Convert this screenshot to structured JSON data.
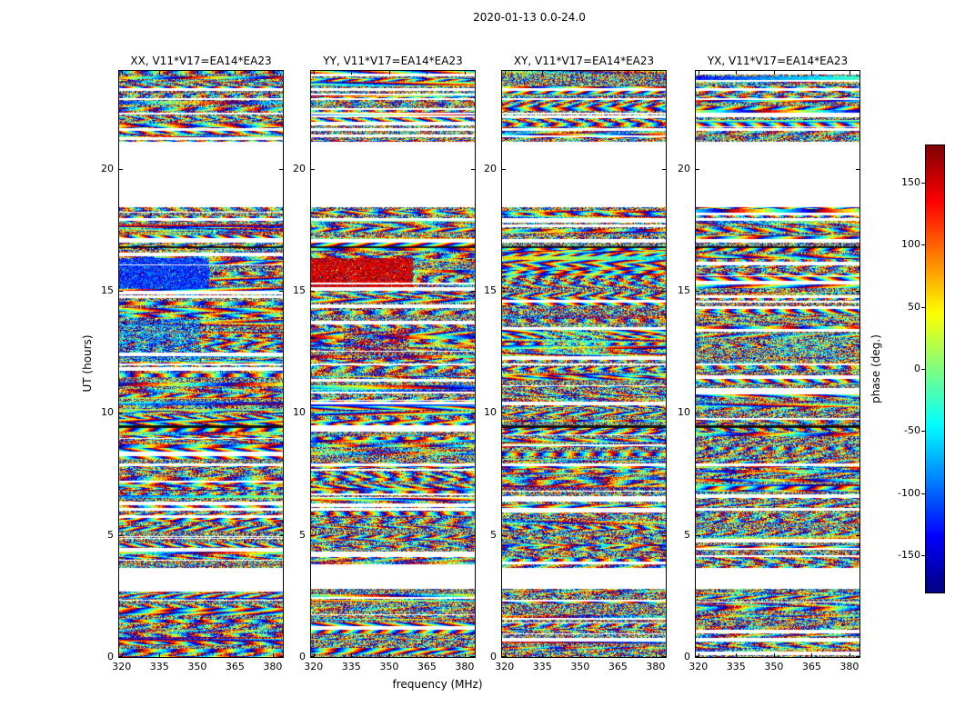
{
  "figure": {
    "title": "2020-01-13 0.0-24.0",
    "xlabel": "frequency (MHz)",
    "ylabel": "UT (hours)",
    "colorbar_label": "phase (deg.)"
  },
  "chart_data": {
    "type": "heatmap",
    "title": "2020-01-13 0.0-24.0",
    "xlabel": "frequency (MHz)",
    "ylabel": "UT (hours)",
    "colormap": "jet",
    "x_range": [
      319,
      384
    ],
    "x_ticks": [
      320,
      335,
      350,
      365,
      380
    ],
    "y_range": [
      0,
      24
    ],
    "y_ticks": [
      0,
      5,
      10,
      15,
      20
    ],
    "colorbar": {
      "label": "phase (deg.)",
      "range": [
        -180,
        180
      ],
      "ticks": [
        150,
        100,
        50,
        0,
        -50,
        -100,
        -150
      ]
    },
    "panels": [
      {
        "title": "XX, V11*V17=EA14*EA23",
        "seed": 11,
        "features": [
          {
            "t0": 15.08,
            "t1": 16.32,
            "x0": 0.0,
            "x1": 0.55,
            "phase": -115,
            "jitter": 38,
            "blend": 0.93
          },
          {
            "t0": 12.1,
            "t1": 13.85,
            "x0": 0.0,
            "x1": 0.5,
            "phase": -95,
            "jitter": 85,
            "blend": 0.55
          }
        ]
      },
      {
        "title": "YY, V11*V17=EA14*EA23",
        "seed": 22,
        "features": [
          {
            "t0": 15.08,
            "t1": 16.32,
            "x0": 0.0,
            "x1": 0.62,
            "phase": 150,
            "jitter": 32,
            "blend": 0.93
          },
          {
            "t0": 12.15,
            "t1": 13.35,
            "x0": 0.2,
            "x1": 0.6,
            "phase": 160,
            "jitter": 75,
            "blend": 0.5
          }
        ]
      },
      {
        "title": "XY, V11*V17=EA14*EA23",
        "seed": 33,
        "features": [
          {
            "t0": 12.4,
            "t1": 13.6,
            "x0": 0.25,
            "x1": 0.65,
            "phase": -15,
            "jitter": 70,
            "blend": 0.45
          }
        ]
      },
      {
        "title": "YX, V11*V17=EA14*EA23",
        "seed": 44,
        "features": [
          {
            "t0": 12.3,
            "t1": 13.3,
            "x0": 0.45,
            "x1": 0.85,
            "phase": -40,
            "jitter": 80,
            "blend": 0.4
          }
        ]
      }
    ],
    "time_gaps_hours": [
      [
        18.42,
        21.08
      ],
      [
        2.8,
        3.66
      ],
      [
        21.55,
        21.65
      ],
      [
        22.2,
        22.28
      ],
      [
        22.8,
        22.9
      ],
      [
        23.18,
        23.3
      ],
      [
        17.86,
        17.98
      ],
      [
        16.96,
        17.1
      ],
      [
        11.94,
        12.02
      ],
      [
        7.8,
        7.92
      ],
      [
        6.0,
        6.1
      ]
    ],
    "dark_rows_hours": [
      16.78,
      9.42
    ]
  }
}
